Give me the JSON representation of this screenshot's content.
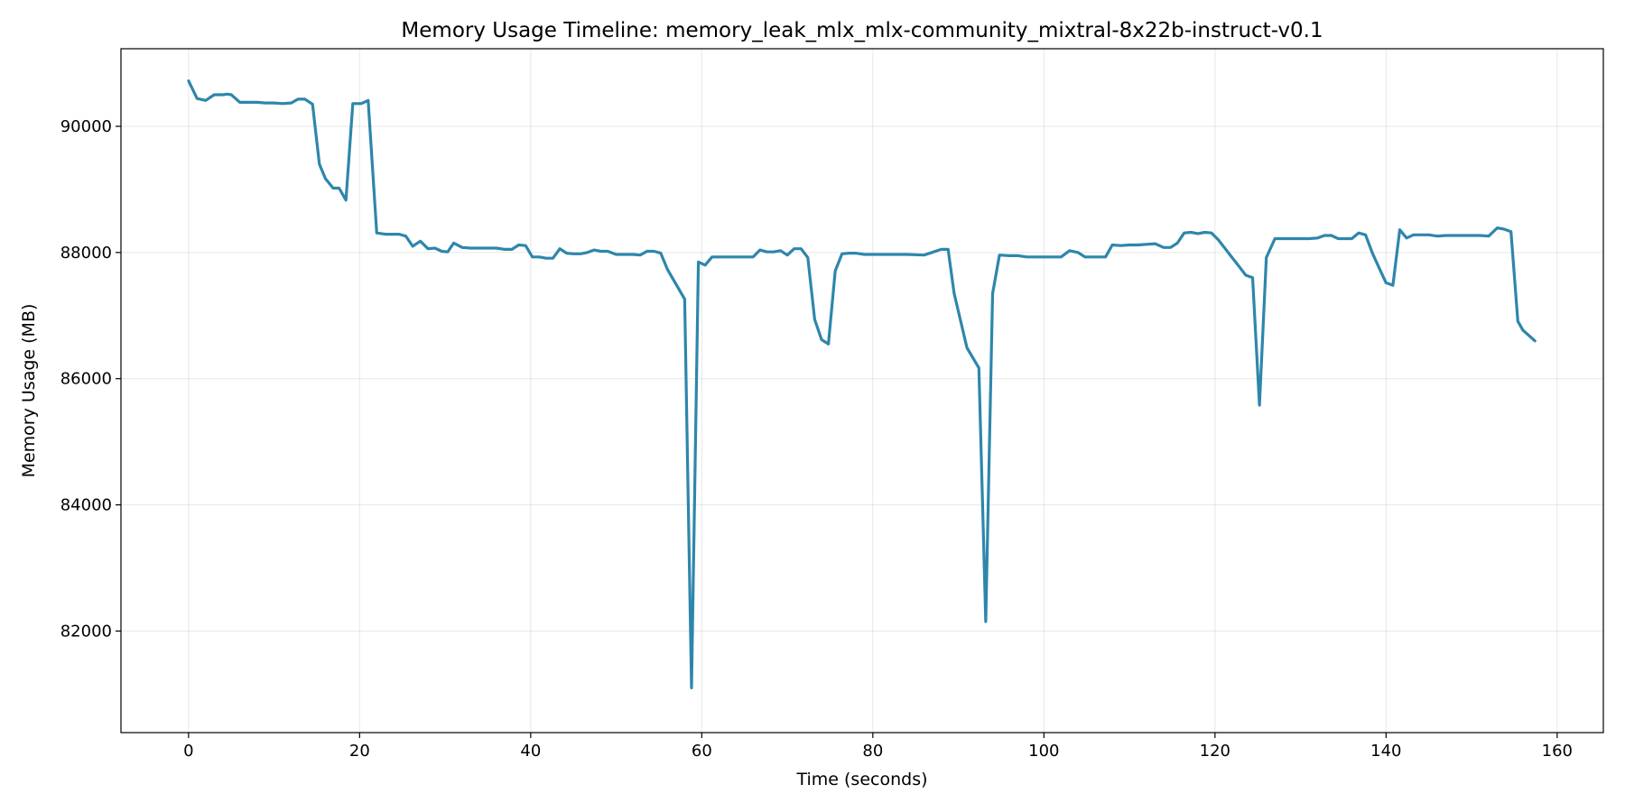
{
  "chart_data": {
    "type": "line",
    "title": "Memory Usage Timeline: memory_leak_mlx_mlx-community_mixtral-8x22b-instruct-v0.1",
    "xlabel": "Time (seconds)",
    "ylabel": "Memory Usage (MB)",
    "xlim": [
      -7.9,
      165.4
    ],
    "ylim": [
      80390,
      91230
    ],
    "xticks": [
      0,
      20,
      40,
      60,
      80,
      100,
      120,
      140,
      160
    ],
    "yticks": [
      82000,
      84000,
      86000,
      88000,
      90000
    ],
    "grid": true,
    "line_color": "#2e86ab",
    "series": [
      {
        "x": [
          0,
          1,
          2,
          3,
          4,
          4.5,
          5,
          6,
          7,
          8,
          9,
          10,
          11,
          12,
          12.8,
          13.6,
          14.5,
          15.3,
          16,
          16.9,
          17.6,
          18.4,
          19.2,
          20.2,
          21,
          22,
          23,
          23.8,
          24.6,
          25.4,
          26.2,
          27.1,
          28,
          28.8,
          29.6,
          30.3,
          31,
          32,
          33,
          34,
          35,
          36,
          37,
          37.8,
          38.6,
          39.4,
          40.2,
          41,
          41.8,
          42.6,
          43.4,
          44.2,
          45,
          45.8,
          46.6,
          47.4,
          48.2,
          49,
          50,
          51,
          52,
          52.8,
          53.6,
          54.4,
          55.2,
          56,
          58,
          58.8,
          59.6,
          60.4,
          61.2,
          62,
          64,
          66,
          66.8,
          67.6,
          68.4,
          69.2,
          70,
          70.8,
          71.6,
          72.4,
          73.2,
          74,
          74.8,
          75.6,
          76.4,
          77.2,
          78,
          79,
          80,
          81,
          82,
          84,
          86,
          88,
          88.8,
          89.5,
          91,
          92.4,
          93.2,
          94,
          94.8,
          96,
          97,
          98,
          98.8,
          100,
          102,
          103,
          104,
          104.8,
          105.6,
          106.4,
          107.2,
          108,
          109,
          110,
          111,
          112,
          113,
          114,
          114.8,
          115.6,
          116.4,
          117.2,
          118,
          118.8,
          119.6,
          120.4,
          121.2,
          122,
          122.8,
          123.6,
          124.4,
          125.2,
          126,
          127,
          128,
          129,
          130,
          131,
          132,
          132.8,
          133.6,
          134.4,
          135.2,
          136,
          136.8,
          137.6,
          138.4,
          139.2,
          140,
          140.8,
          141.6,
          142.4,
          143.2,
          144,
          145,
          146,
          147,
          148,
          149,
          150,
          151,
          152,
          153,
          153.8,
          154.6,
          155.4,
          156,
          157.4
        ],
        "y": [
          90720,
          90440,
          90410,
          90500,
          90500,
          90510,
          90500,
          90380,
          90380,
          90380,
          90370,
          90370,
          90360,
          90370,
          90430,
          90430,
          90350,
          89400,
          89170,
          89020,
          89020,
          88830,
          90360,
          90360,
          90410,
          88310,
          88290,
          88290,
          88290,
          88260,
          88100,
          88180,
          88060,
          88070,
          88020,
          88010,
          88150,
          88080,
          88070,
          88070,
          88070,
          88070,
          88050,
          88050,
          88120,
          88110,
          87930,
          87930,
          87910,
          87910,
          88060,
          87990,
          87980,
          87980,
          88000,
          88040,
          88020,
          88020,
          87970,
          87970,
          87970,
          87960,
          88020,
          88020,
          87990,
          87730,
          87260,
          81100,
          87850,
          87800,
          87930,
          87930,
          87930,
          87930,
          88040,
          88010,
          88010,
          88030,
          87960,
          88060,
          88060,
          87920,
          86940,
          86620,
          86550,
          87710,
          87980,
          87990,
          87990,
          87970,
          87970,
          87970,
          87970,
          87970,
          87960,
          88050,
          88050,
          87350,
          86490,
          86170,
          82150,
          87350,
          87960,
          87950,
          87950,
          87930,
          87930,
          87930,
          87930,
          88030,
          88000,
          87930,
          87930,
          87930,
          87930,
          88120,
          88110,
          88120,
          88120,
          88130,
          88140,
          88080,
          88080,
          88150,
          88310,
          88320,
          88300,
          88320,
          88310,
          88200,
          88060,
          87920,
          87780,
          87640,
          87600,
          85580,
          87920,
          88220,
          88220,
          88220,
          88220,
          88220,
          88230,
          88270,
          88270,
          88220,
          88220,
          88220,
          88310,
          88280,
          87990,
          87750,
          87520,
          87480,
          88360,
          88230,
          88280,
          88280,
          88280,
          88260,
          88270,
          88270,
          88270,
          88270,
          88270,
          88260,
          88390,
          88370,
          88330,
          86910,
          86770,
          86600
        ]
      }
    ]
  }
}
